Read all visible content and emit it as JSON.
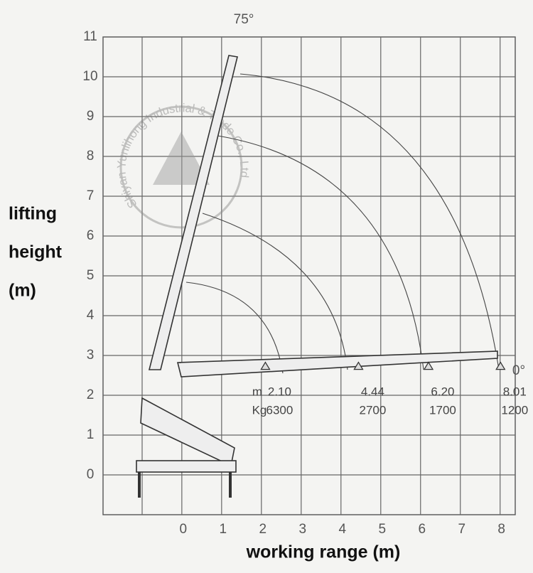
{
  "chart_data": {
    "type": "crane-range",
    "y_label": [
      "lifting",
      "height",
      "(m)"
    ],
    "x_label": "working range (m)",
    "angle_labels": [
      "75°",
      "0°"
    ],
    "watermark": "Shiyan Yunlihong Industrial & Trade Co., Ltd.",
    "range_unit": "m",
    "load_unit": "Kg",
    "x": [
      2.1,
      4.44,
      6.2,
      8.01
    ],
    "x_labels": [
      "2.10",
      "4.44",
      "6.20",
      "8.01"
    ],
    "values": [
      6300,
      2700,
      1700,
      1200
    ],
    "xlim": [
      -1.98,
      8.38
    ],
    "ylim": [
      -1,
      11
    ],
    "xticks": [
      0,
      1,
      2,
      3,
      4,
      5,
      6,
      7,
      8
    ],
    "yticks": [
      0,
      1,
      2,
      3,
      4,
      5,
      6,
      7,
      8,
      9,
      10,
      11
    ],
    "grid": true,
    "color": "#333333"
  }
}
